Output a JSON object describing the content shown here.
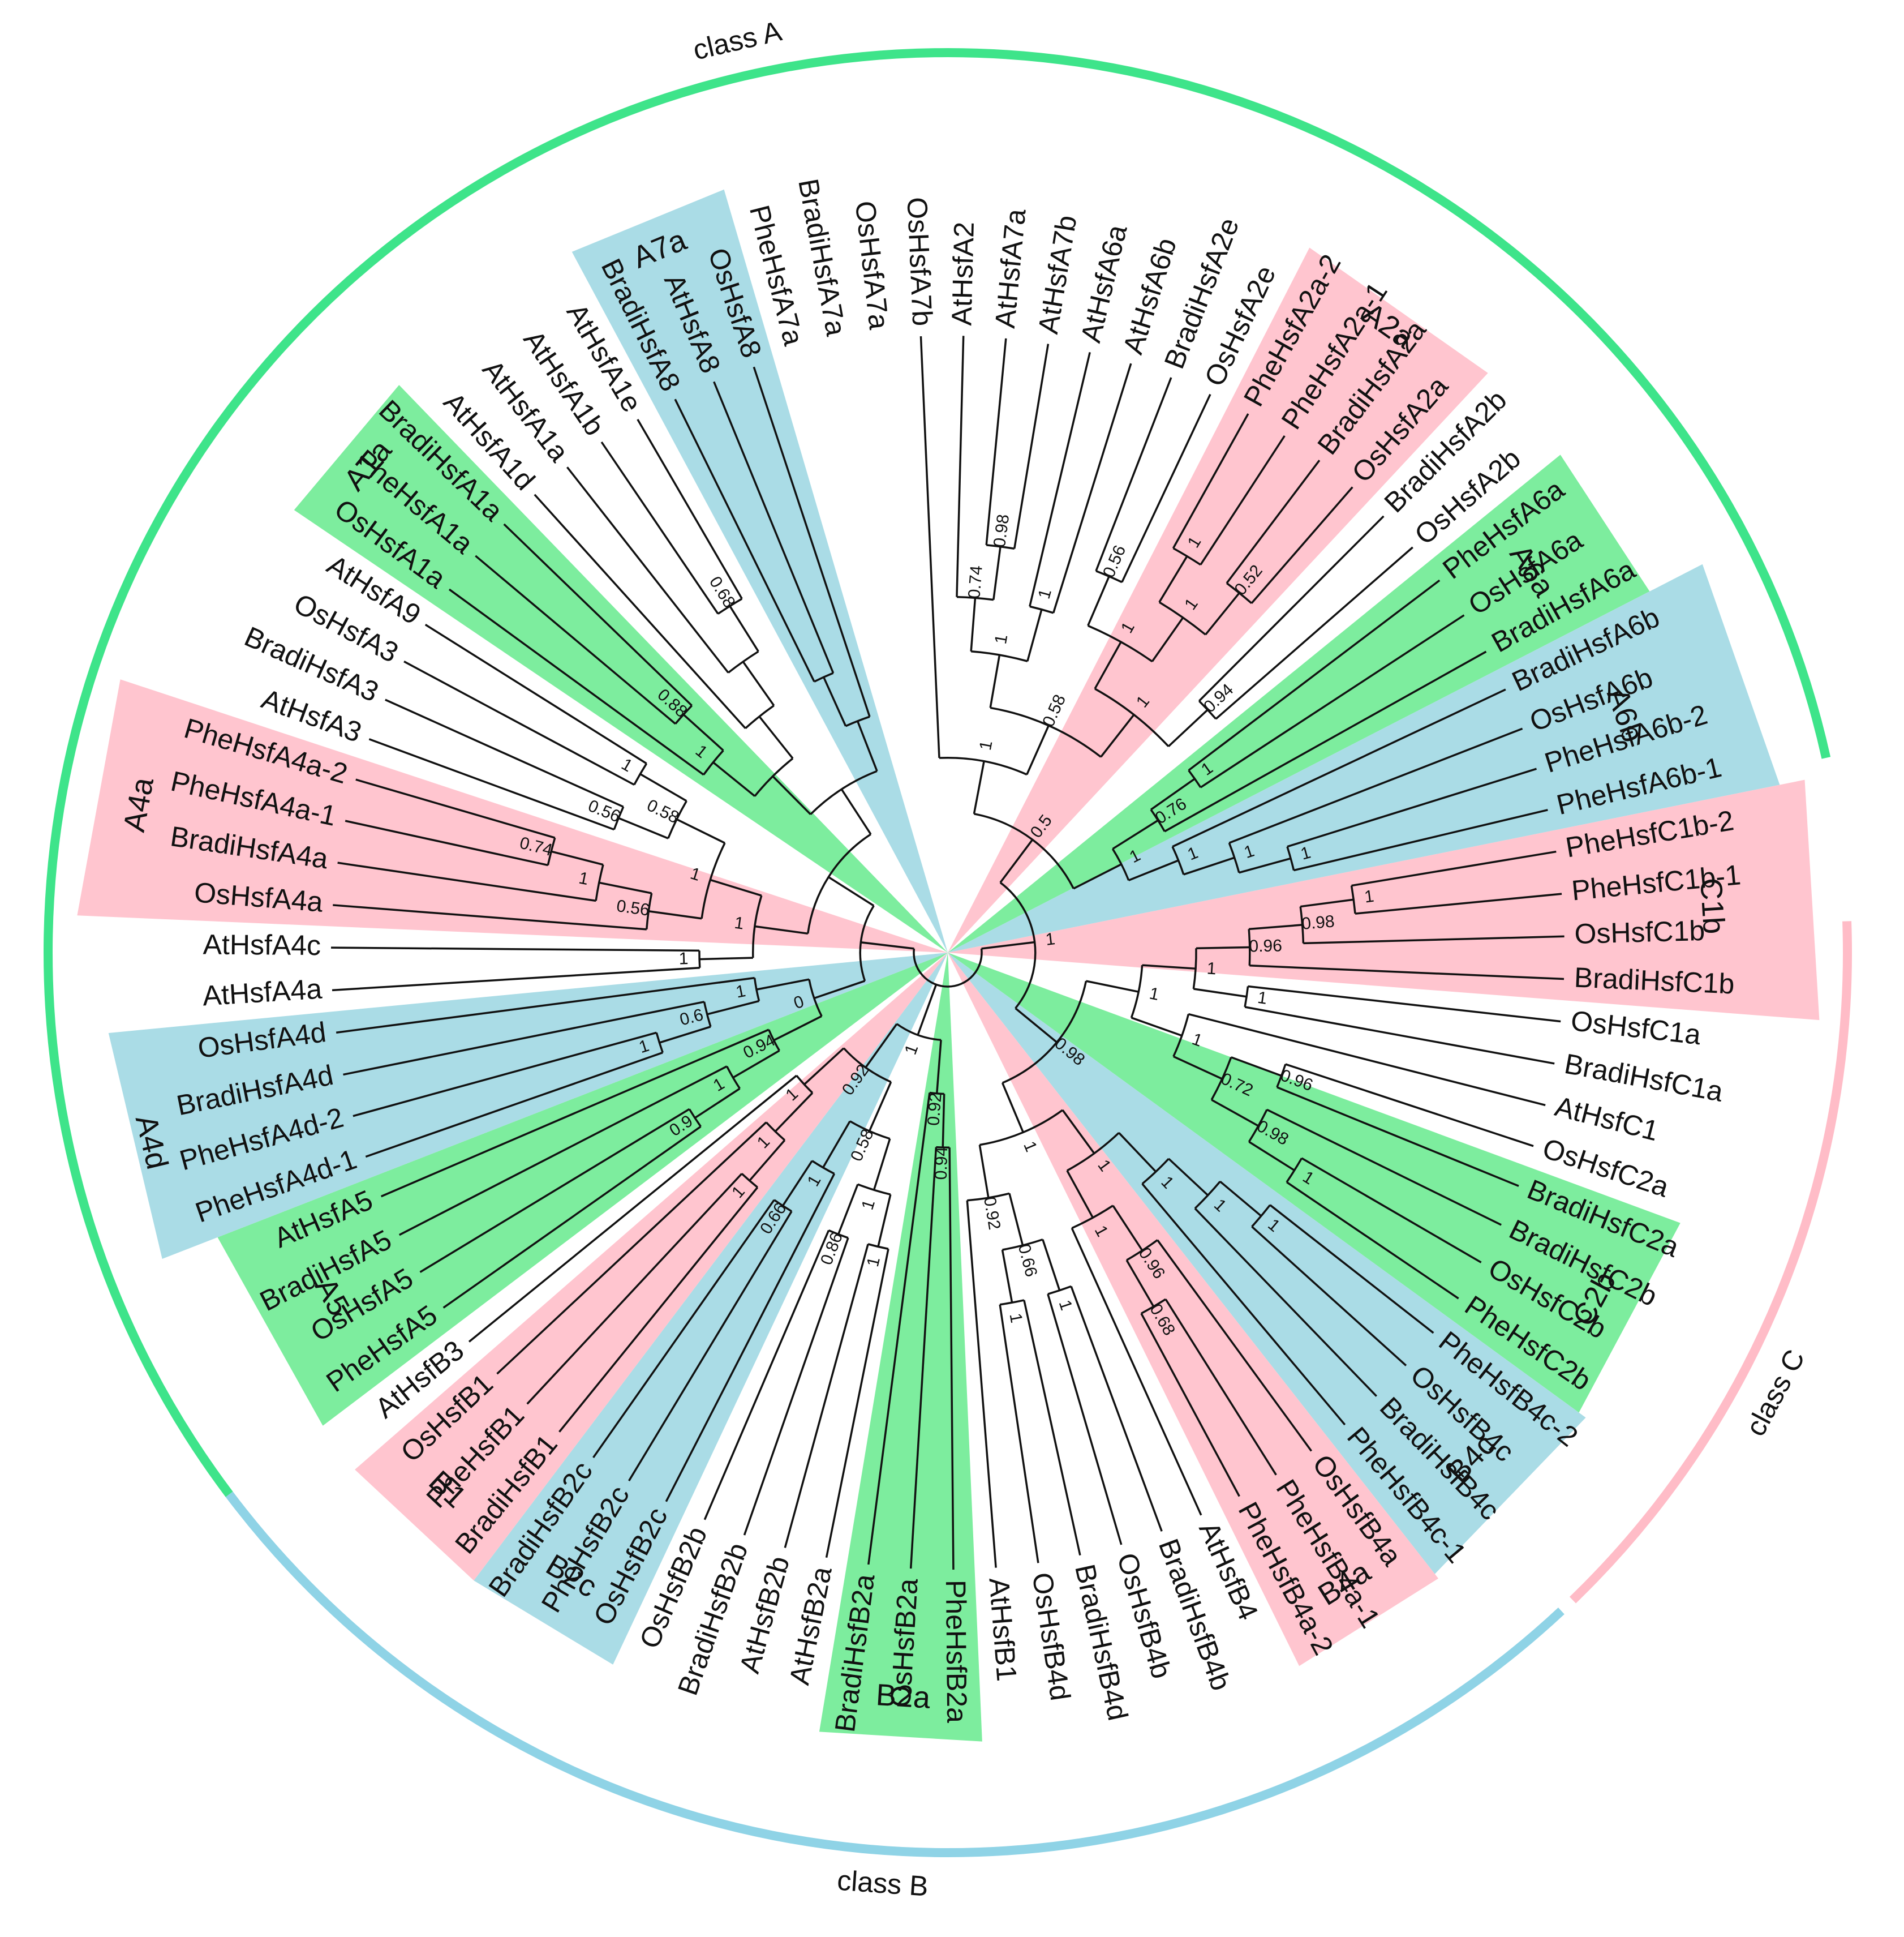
{
  "colors": {
    "green": "#7ded9e",
    "pink": "#ffc5cf",
    "blue": "#aadce6",
    "arc_a": "#3ee48a",
    "arc_b": "#8fd3e6",
    "arc_c": "#ffbcc7",
    "branch": "#111111",
    "text": "#111111"
  },
  "class_labels": [
    {
      "text": "class A"
    },
    {
      "text": "class B"
    },
    {
      "text": "class C"
    }
  ],
  "subfamilies": [
    {
      "label": "A7a",
      "color": "blue"
    },
    {
      "label": "A2a",
      "color": "pink"
    },
    {
      "label": "A6a",
      "color": "green"
    },
    {
      "label": "A6b",
      "color": "blue"
    },
    {
      "label": "C1b",
      "color": "pink"
    },
    {
      "label": "C2b",
      "color": "green"
    },
    {
      "label": "B4c",
      "color": "blue"
    },
    {
      "label": "B4a",
      "color": "pink"
    },
    {
      "label": "B2a",
      "color": "green"
    },
    {
      "label": "B2c",
      "color": "blue"
    },
    {
      "label": "B1",
      "color": "pink"
    },
    {
      "label": "A5",
      "color": "green"
    },
    {
      "label": "A4d",
      "color": "blue"
    },
    {
      "label": "A4a",
      "color": "pink"
    },
    {
      "label": "A1a",
      "color": "green"
    }
  ],
  "leaves": [
    "OsHsfA7b",
    "AtHsfA2",
    "AtHsfA7a",
    "AtHsfA7b",
    "AtHsfA6a",
    "AtHsfA6b",
    "BradiHsfA2e",
    "OsHsfA2e",
    "PheHsfA2a-2",
    "PheHsfA2a-1",
    "BradiHsfA2a",
    "OsHsfA2a",
    "BradiHsfA2b",
    "OsHsfA2b",
    "PheHsfA6a",
    "OsHsfA6a",
    "BradiHsfA6a",
    "BradiHsfA6b",
    "OsHsfA6b",
    "PheHsfA6b-2",
    "PheHsfA6b-1",
    "PheHsfC1b-2",
    "PheHsfC1b-1",
    "OsHsfC1b",
    "BradiHsfC1b",
    "OsHsfC1a",
    "BradiHsfC1a",
    "AtHsfC1",
    "OsHsfC2a",
    "BradiHsfC2a",
    "BradiHsfC2b",
    "OsHsfC2b",
    "PheHsfC2b",
    "PheHsfB4c-2",
    "OsHsfB4c",
    "BradiHsfB4c",
    "PheHsfB4c-1",
    "OsHsfB4a",
    "PheHsfB4a-1",
    "PheHsfB4a-2",
    "AtHsfB4",
    "BradiHsfB4b",
    "OsHsfB4b",
    "BradiHsfB4d",
    "OsHsfB4d",
    "AtHsfB1",
    "PheHsfB2a",
    "OsHsfB2a",
    "BradiHsfB2a",
    "AtHsfB2a",
    "AtHsfB2b",
    "BradiHsfB2b",
    "OsHsfB2b",
    "OsHsfB2c",
    "PheHsfB2c",
    "BradiHsfB2c",
    "BradiHsfB1",
    "PheHsfB1",
    "OsHsfB1",
    "AtHsfB3",
    "PheHsfA5",
    "OsHsfA5",
    "BradiHsfA5",
    "AtHsfA5",
    "PheHsfA4d-1",
    "PheHsfA4d-2",
    "BradiHsfA4d",
    "OsHsfA4d",
    "AtHsfA4a",
    "AtHsfA4c",
    "OsHsfA4a",
    "BradiHsfA4a",
    "PheHsfA4a-1",
    "PheHsfA4a-2",
    "AtHsfA3",
    "BradiHsfA3",
    "OsHsfA3",
    "AtHsfA9",
    "OsHsfA1a",
    "PheHsfA1a",
    "BradiHsfA1a",
    "AtHsfA1d",
    "AtHsfA1a",
    "AtHsfA1b",
    "AtHsfA1e",
    "BradiHsfA8",
    "AtHsfA8",
    "OsHsfA8",
    "PheHsfA7a",
    "BradiHsfA7a",
    "OsHsfA7a"
  ],
  "support_values": [
    "0.98",
    "0.74",
    "1",
    "1",
    "0.56",
    "1",
    "0.52",
    "1",
    "1",
    "0.94",
    "1",
    "0.58",
    "1",
    "1",
    "0.76",
    "1",
    "1",
    "1",
    "1",
    "0.5",
    "1",
    "0.98",
    "0.96",
    "1",
    "1",
    "0.96",
    "1",
    "0.98",
    "0.72",
    "1",
    "1",
    "1",
    "1",
    "1",
    "0.68",
    "0.96",
    "1",
    "1",
    "1",
    "1",
    "0.66",
    "0.92",
    "1",
    "0.98",
    "1",
    "0.94",
    "0.92",
    "1",
    "0.86",
    "1",
    "0.66",
    "1",
    "0.58",
    "1",
    "1",
    "1",
    "0.92",
    "1",
    "0.9",
    "1",
    "0.94",
    "1",
    "0.6",
    "1",
    "0",
    "1",
    "0.74",
    "1",
    "0.56",
    "0.56",
    "1",
    "0.58",
    "1",
    "1",
    "0.88",
    "1",
    "0.68"
  ]
}
